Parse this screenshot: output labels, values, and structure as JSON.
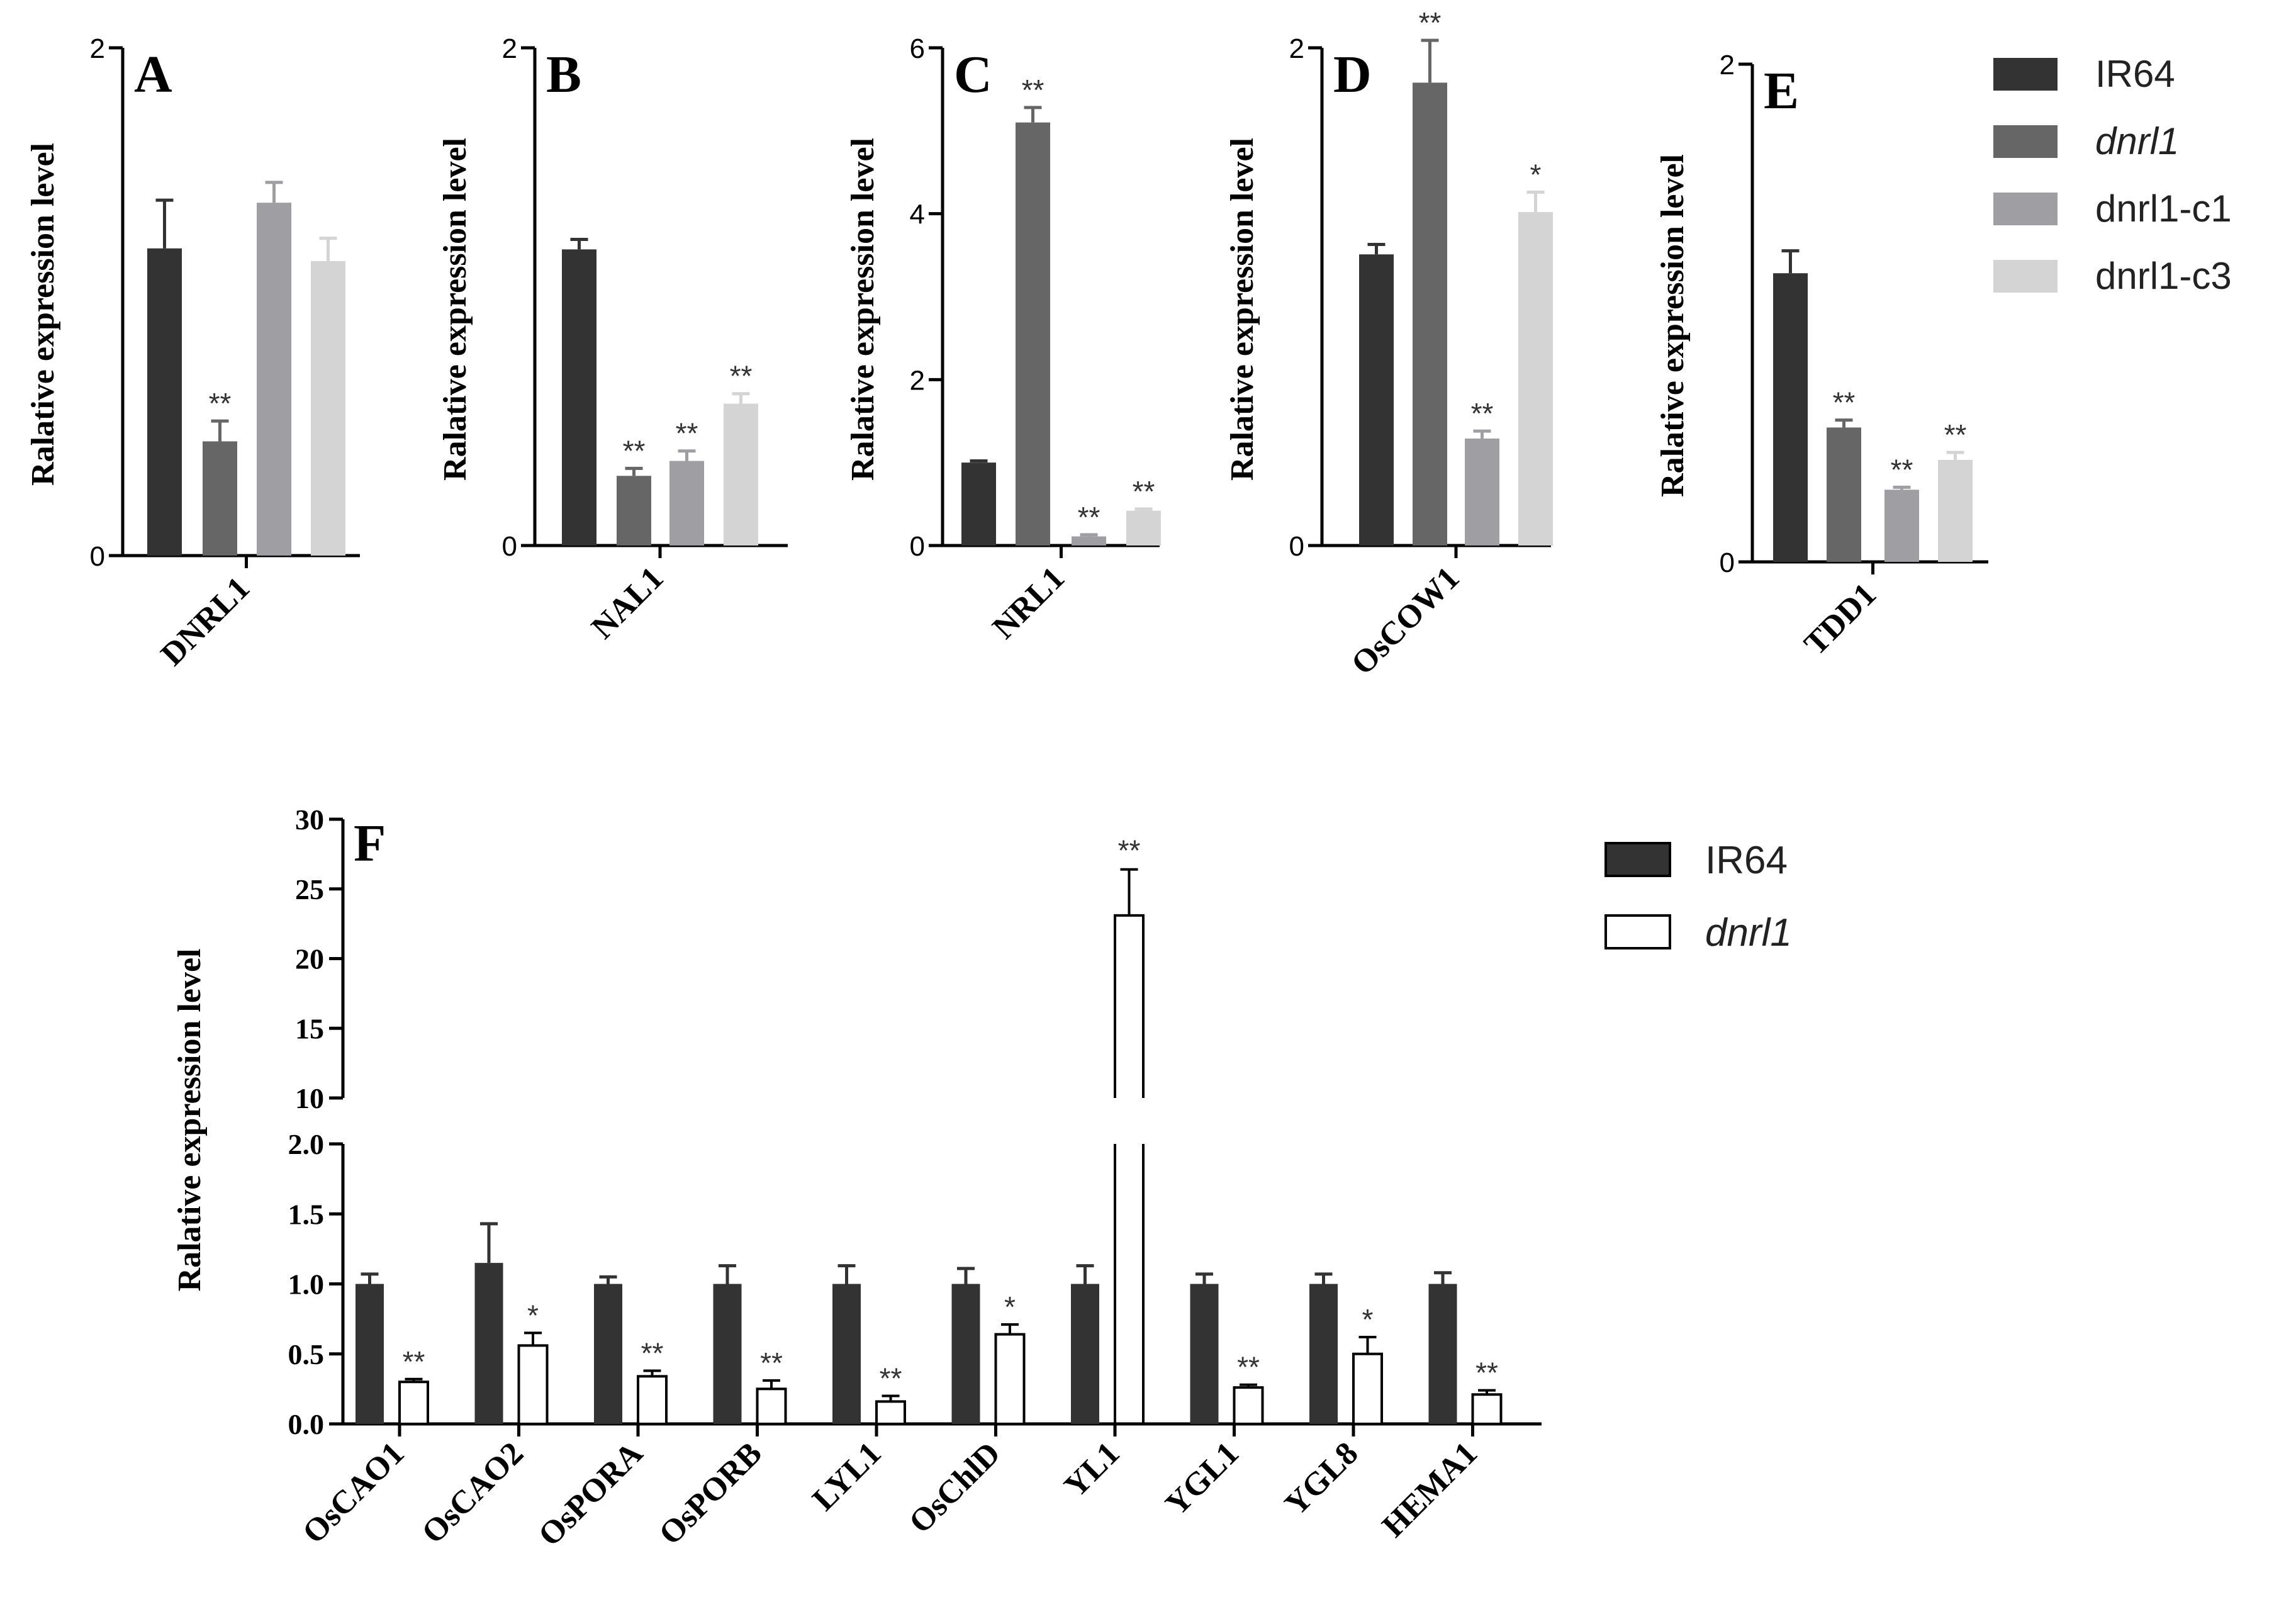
{
  "chart_data": [
    {
      "type": "bar",
      "panel_label": "A",
      "ylabel": "Ralative expression level",
      "ylim": [
        0,
        2
      ],
      "yticks": [
        "0",
        "2"
      ],
      "categories": [
        "DNRL1"
      ],
      "series": [
        {
          "name": "IR64",
          "values": [
            1.21
          ],
          "errors": [
            0.19
          ],
          "sig": [
            ""
          ]
        },
        {
          "name": "dnrl1",
          "values": [
            0.45
          ],
          "errors": [
            0.08
          ],
          "sig": [
            "**"
          ]
        },
        {
          "name": "dnrl1-c1",
          "values": [
            1.39
          ],
          "errors": [
            0.08
          ],
          "sig": [
            ""
          ]
        },
        {
          "name": "dnrl1-c3",
          "values": [
            1.16
          ],
          "errors": [
            0.09
          ],
          "sig": [
            ""
          ]
        }
      ]
    },
    {
      "type": "bar",
      "panel_label": "B",
      "ylabel": "Ralative expression level",
      "ylim": [
        0,
        2
      ],
      "yticks": [
        "0",
        "2"
      ],
      "categories": [
        "NAL1"
      ],
      "series": [
        {
          "name": "IR64",
          "values": [
            1.19
          ],
          "errors": [
            0.04
          ],
          "sig": [
            ""
          ]
        },
        {
          "name": "dnrl1",
          "values": [
            0.28
          ],
          "errors": [
            0.03
          ],
          "sig": [
            "**"
          ]
        },
        {
          "name": "dnrl1-c1",
          "values": [
            0.34
          ],
          "errors": [
            0.04
          ],
          "sig": [
            "**"
          ]
        },
        {
          "name": "dnrl1-c3",
          "values": [
            0.57
          ],
          "errors": [
            0.04
          ],
          "sig": [
            "**"
          ]
        }
      ]
    },
    {
      "type": "bar",
      "panel_label": "C",
      "ylabel": "Ralative expression level",
      "ylim": [
        0,
        6
      ],
      "yticks": [
        "0",
        "2",
        "4",
        "6"
      ],
      "categories": [
        "NRL1"
      ],
      "series": [
        {
          "name": "IR64",
          "values": [
            1.0
          ],
          "errors": [
            0.02
          ],
          "sig": [
            ""
          ]
        },
        {
          "name": "dnrl1",
          "values": [
            5.1
          ],
          "errors": [
            0.18
          ],
          "sig": [
            "**"
          ]
        },
        {
          "name": "dnrl1-c1",
          "values": [
            0.11
          ],
          "errors": [
            0.02
          ],
          "sig": [
            "**"
          ]
        },
        {
          "name": "dnrl1-c3",
          "values": [
            0.42
          ],
          "errors": [
            0.02
          ],
          "sig": [
            "**"
          ]
        }
      ]
    },
    {
      "type": "bar",
      "panel_label": "D",
      "ylabel": "Ralative expression level",
      "ylim": [
        0,
        2
      ],
      "yticks": [
        "0",
        "2"
      ],
      "categories": [
        "OsCOW1"
      ],
      "series": [
        {
          "name": "IR64",
          "values": [
            1.17
          ],
          "errors": [
            0.04
          ],
          "sig": [
            ""
          ]
        },
        {
          "name": "dnrl1",
          "values": [
            1.86
          ],
          "errors": [
            0.17
          ],
          "sig": [
            "**"
          ]
        },
        {
          "name": "dnrl1-c1",
          "values": [
            0.43
          ],
          "errors": [
            0.03
          ],
          "sig": [
            "**"
          ]
        },
        {
          "name": "dnrl1-c3",
          "values": [
            1.34
          ],
          "errors": [
            0.08
          ],
          "sig": [
            "*"
          ]
        }
      ]
    },
    {
      "type": "bar",
      "panel_label": "E",
      "ylabel": "Ralative expression level",
      "ylim": [
        0,
        2
      ],
      "yticks": [
        "0",
        "2"
      ],
      "categories": [
        "TDD1"
      ],
      "series": [
        {
          "name": "IR64",
          "values": [
            1.16
          ],
          "errors": [
            0.09
          ],
          "sig": [
            ""
          ]
        },
        {
          "name": "dnrl1",
          "values": [
            0.54
          ],
          "errors": [
            0.03
          ],
          "sig": [
            "**"
          ]
        },
        {
          "name": "dnrl1-c1",
          "values": [
            0.29
          ],
          "errors": [
            0.01
          ],
          "sig": [
            "**"
          ]
        },
        {
          "name": "dnrl1-c3",
          "values": [
            0.41
          ],
          "errors": [
            0.03
          ],
          "sig": [
            "**"
          ]
        }
      ]
    },
    {
      "type": "bar",
      "panel_label": "F",
      "ylabel": "Ralative expression level",
      "y_axis_break": {
        "lower": [
          0,
          2.0
        ],
        "upper": [
          10,
          30
        ]
      },
      "yticks_lower": [
        "0.0",
        "0.5",
        "1.0",
        "1.5",
        "2.0"
      ],
      "yticks_upper": [
        "10",
        "15",
        "20",
        "25",
        "30"
      ],
      "categories": [
        "OsCAO1",
        "OsCAO2",
        "OsPORA",
        "OsPORB",
        "LYL1",
        "OsChlD",
        "YL1",
        "YGL1",
        "YGL8",
        "HEMA1"
      ],
      "series": [
        {
          "name": "IR64",
          "values": [
            1.0,
            1.15,
            1.0,
            1.0,
            1.0,
            1.0,
            1.0,
            1.0,
            1.0,
            1.0
          ],
          "errors": [
            0.07,
            0.28,
            0.05,
            0.13,
            0.13,
            0.11,
            0.13,
            0.07,
            0.07,
            0.08
          ],
          "sig": [
            "",
            "",
            "",
            "",
            "",
            "",
            "",
            "",
            "",
            ""
          ]
        },
        {
          "name": "dnrl1",
          "values": [
            0.3,
            0.56,
            0.34,
            0.25,
            0.16,
            0.64,
            23.1,
            0.26,
            0.5,
            0.21
          ],
          "errors": [
            0.02,
            0.09,
            0.04,
            0.06,
            0.04,
            0.07,
            3.3,
            0.02,
            0.12,
            0.03
          ],
          "sig": [
            "**",
            "*",
            "**",
            "**",
            "**",
            "*",
            "**",
            "**",
            "*",
            "**"
          ]
        }
      ]
    }
  ],
  "legend_top": [
    {
      "name": "IR64",
      "label": "IR64",
      "color": "#333333",
      "italic": false
    },
    {
      "name": "dnrl1",
      "label": "dnrl1",
      "color": "#666666",
      "italic": true
    },
    {
      "name": "dnrl1-c1",
      "label": "dnrl1-c1",
      "color": "#9f9fa3",
      "italic": false
    },
    {
      "name": "dnrl1-c3",
      "label": "dnrl1-c3",
      "color": "#d4d4d4",
      "italic": false
    }
  ],
  "legend_bottom": [
    {
      "name": "IR64",
      "label": "IR64",
      "color": "#333333",
      "italic": false
    },
    {
      "name": "dnrl1",
      "label": "dnrl1",
      "color": "#ffffff",
      "italic": true
    }
  ],
  "colors": {
    "IR64": "#333333",
    "dnrl1": "#666666",
    "dnrl1-c1": "#9f9fa3",
    "dnrl1-c3": "#d4d4d4",
    "F_IR64": "#333333",
    "F_dnrl1": "#ffffff",
    "axis": "#000000"
  }
}
